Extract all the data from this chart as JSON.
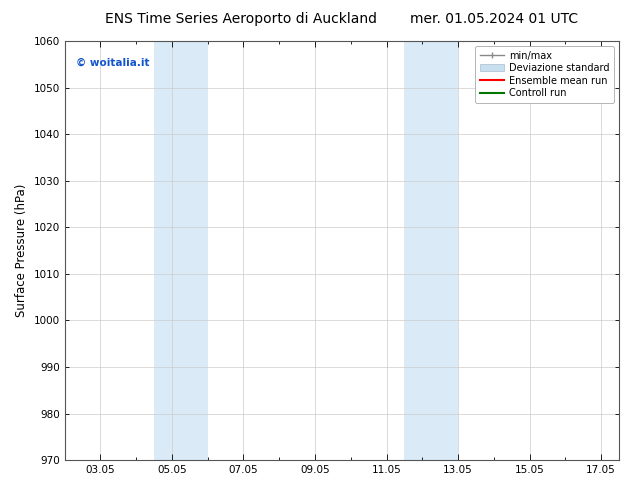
{
  "title_left": "ENS Time Series Aeroporto di Auckland",
  "title_right": "mer. 01.05.2024 01 UTC",
  "ylabel": "Surface Pressure (hPa)",
  "ylim": [
    970,
    1060
  ],
  "yticks": [
    970,
    980,
    990,
    1000,
    1010,
    1020,
    1030,
    1040,
    1050,
    1060
  ],
  "xtick_labels": [
    "03.05",
    "05.05",
    "07.05",
    "09.05",
    "11.05",
    "13.05",
    "15.05",
    "17.05"
  ],
  "xtick_days": [
    3,
    5,
    7,
    9,
    11,
    13,
    15,
    17
  ],
  "xlim_days": [
    2,
    17.5
  ],
  "shade_bands": [
    {
      "x_start": 4.5,
      "x_end": 6.0,
      "color": "#daeaf7"
    },
    {
      "x_start": 11.5,
      "x_end": 13.0,
      "color": "#daeaf7"
    }
  ],
  "watermark_text": "© woitalia.it",
  "watermark_color": "#1155cc",
  "bg_color": "#ffffff",
  "plot_bg_color": "#ffffff",
  "title_fontsize": 10,
  "tick_fontsize": 7.5,
  "ylabel_fontsize": 8.5
}
